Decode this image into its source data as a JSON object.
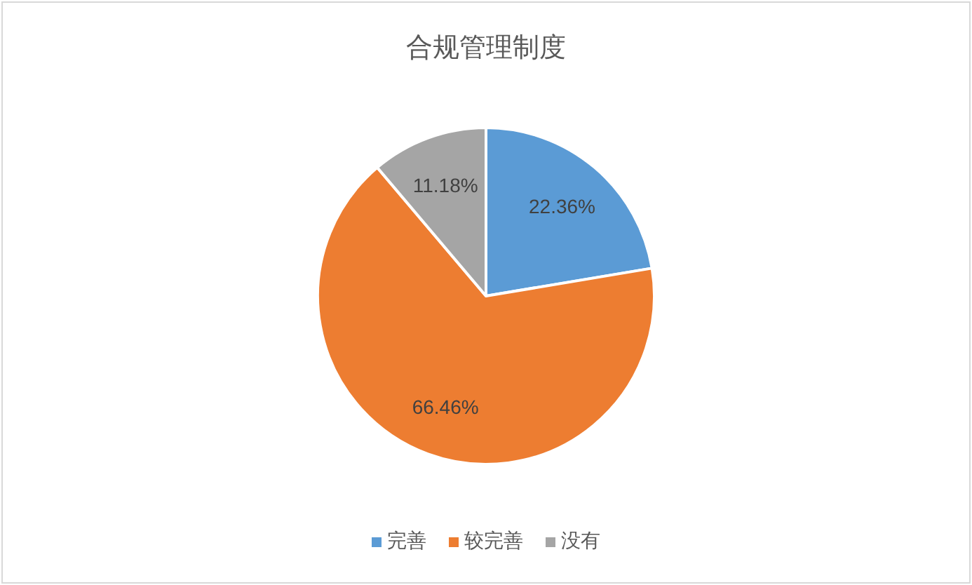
{
  "chart_data": {
    "type": "pie",
    "title": "合规管理制度",
    "categories": [
      "完善",
      "较完善",
      "没有"
    ],
    "values": [
      22.36,
      66.46,
      11.18
    ],
    "colors": [
      "#5b9bd5",
      "#ed7d31",
      "#a5a5a5"
    ],
    "value_labels": [
      "22.36%",
      "66.46%",
      "11.18%"
    ],
    "legend": "bottom"
  }
}
